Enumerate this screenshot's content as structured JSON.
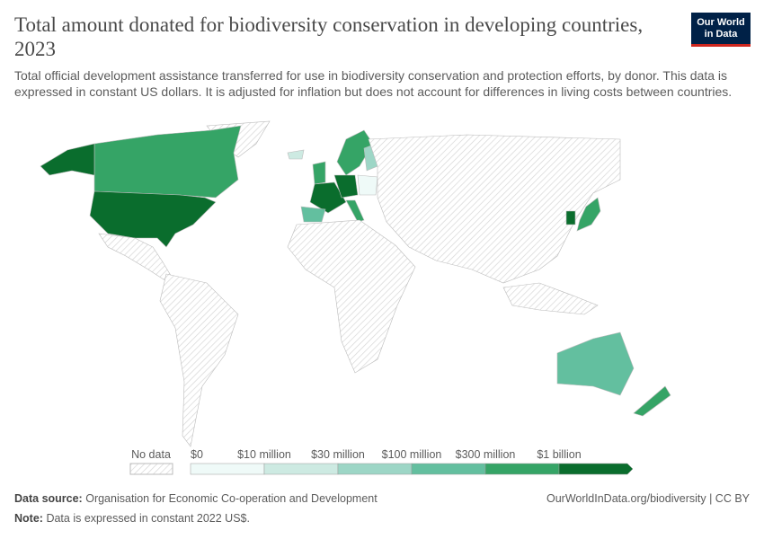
{
  "header": {
    "title": "Total amount donated for biodiversity conservation in developing countries, 2023",
    "subtitle": "Total official development assistance transferred for use in biodiversity conservation and protection efforts, by donor. This data is expressed in constant US dollars. It is adjusted for inflation but does not account for differences in living costs between countries."
  },
  "logo": {
    "lines": [
      "Our World",
      "in Data"
    ]
  },
  "legend": {
    "no_data": "No data",
    "colors": [
      "#effaf8",
      "#cdeae2",
      "#9dd6c6",
      "#63bf9f",
      "#35a466",
      "#0a6d2d"
    ],
    "thresholds": [
      {
        "value": 0,
        "label": "$0"
      },
      {
        "value": 10000000,
        "label": "$10 million"
      },
      {
        "value": 30000000,
        "label": "$30 million"
      },
      {
        "value": 100000000,
        "label": "$100 million"
      },
      {
        "value": 300000000,
        "label": "$300 million"
      },
      {
        "value": 1000000000,
        "label": "$1 billion"
      }
    ]
  },
  "footer": {
    "source_label": "Data source:",
    "source": "Organisation for Economic Co-operation and Development",
    "url": "OurWorldInData.org/biodiversity | CC BY",
    "note_label": "Note:",
    "note": "Data is expressed in constant 2022 US$."
  }
}
